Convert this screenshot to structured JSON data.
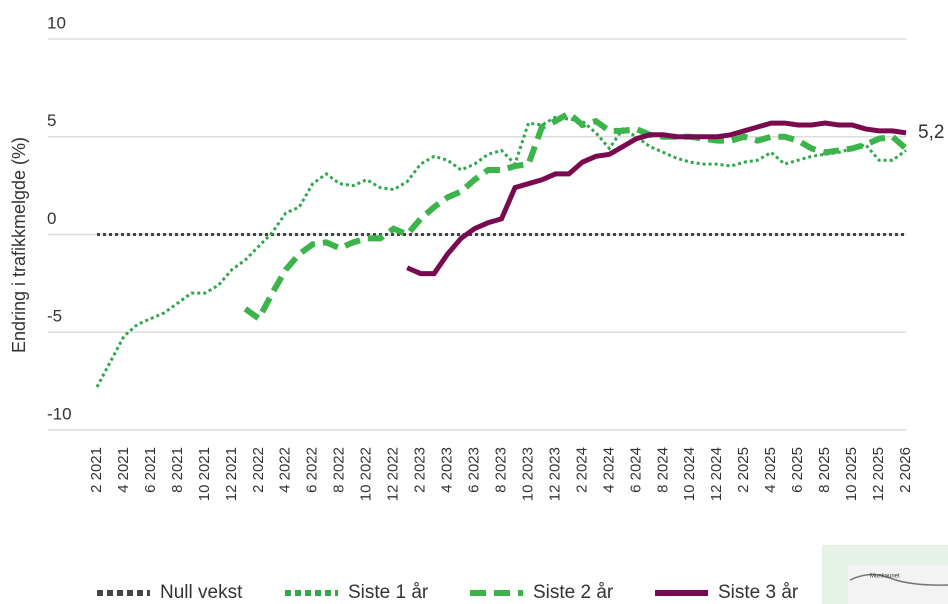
{
  "chart_data": {
    "type": "line",
    "y_label": "Endring i trafikkmelgde (%)",
    "categories": [
      "2 2021",
      null,
      "4 2021",
      null,
      "6 2021",
      null,
      "8 2021",
      null,
      "10 2021",
      null,
      "12 2021",
      null,
      "2 2022",
      null,
      "4 2022",
      null,
      "6 2022",
      null,
      "8 2022",
      null,
      "10 2022",
      null,
      "12 2022",
      null,
      "2 2023",
      null,
      "4 2023",
      null,
      "6 2023",
      null,
      "8 2023",
      null,
      "10 2023",
      null,
      "12 2023",
      null,
      "2 2024",
      null,
      "4 2024",
      null,
      "6 2024",
      null,
      "8 2024",
      null,
      "10 2024",
      null,
      "12 2024",
      null,
      "2 2025",
      null,
      "4 2025",
      null,
      "6 2025",
      null,
      "8 2025",
      null,
      "10 2025",
      null,
      "12 2025",
      null,
      "2 2026"
    ],
    "series": [
      {
        "name": "Null vekst",
        "color": "#444444",
        "style": "dotted",
        "values": [
          0,
          0,
          0,
          0,
          0,
          0,
          0,
          0,
          0,
          0,
          0,
          0,
          0,
          0,
          0,
          0,
          0,
          0,
          0,
          0,
          0,
          0,
          0,
          0,
          0,
          0,
          0,
          0,
          0,
          0,
          0,
          0,
          0,
          0,
          0,
          0,
          0,
          0,
          0,
          0,
          0,
          0,
          0,
          0,
          0,
          0,
          0,
          0,
          0,
          0,
          0,
          0,
          0,
          0,
          0,
          0,
          0,
          0,
          0,
          0,
          0
        ]
      },
      {
        "name": "Siste 1 år",
        "color": "#2ea84a",
        "style": "dotted",
        "values": [
          -7.8,
          -6.5,
          -5.2,
          -4.6,
          -4.3,
          -4.0,
          -3.5,
          -3.0,
          -3.0,
          -2.6,
          -1.8,
          -1.3,
          -0.6,
          0.1,
          1.1,
          1.4,
          2.6,
          3.1,
          2.6,
          2.5,
          2.8,
          2.4,
          2.3,
          2.7,
          3.6,
          4.0,
          3.8,
          3.3,
          3.6,
          4.1,
          4.3,
          3.6,
          5.7,
          5.6,
          6.0,
          5.9,
          5.8,
          5.2,
          4.4,
          5.4,
          5.0,
          4.5,
          4.2,
          3.9,
          3.7,
          3.6,
          3.6,
          3.5,
          3.7,
          3.8,
          4.2,
          3.6,
          3.8,
          4.0,
          4.1,
          4.2,
          4.4,
          4.6,
          3.8,
          3.8,
          4.3
        ]
      },
      {
        "name": "Siste 2 år",
        "color": "#3cb44b",
        "style": "dashed",
        "values": [
          null,
          null,
          null,
          null,
          null,
          null,
          null,
          null,
          null,
          null,
          null,
          -3.8,
          -4.3,
          -3.0,
          -1.8,
          -1.0,
          -0.5,
          -0.4,
          -0.7,
          -0.4,
          -0.2,
          -0.2,
          0.3,
          0.0,
          0.8,
          1.4,
          1.9,
          2.2,
          2.8,
          3.3,
          3.3,
          3.5,
          3.6,
          5.5,
          5.8,
          6.2,
          5.6,
          5.8,
          5.3,
          5.3,
          5.4,
          5.1,
          5.0,
          5.0,
          5.0,
          4.9,
          4.8,
          4.8,
          5.0,
          4.8,
          5.0,
          5.0,
          4.8,
          4.4,
          4.2,
          4.3,
          4.4,
          4.6,
          4.9,
          5.0,
          4.4
        ]
      },
      {
        "name": "Siste 3 år",
        "color": "#7a0a4f",
        "style": "solid",
        "values": [
          null,
          null,
          null,
          null,
          null,
          null,
          null,
          null,
          null,
          null,
          null,
          null,
          null,
          null,
          null,
          null,
          null,
          null,
          null,
          null,
          null,
          null,
          null,
          -1.7,
          -2.0,
          -2.0,
          -1.0,
          -0.2,
          0.3,
          0.6,
          0.8,
          2.4,
          2.6,
          2.8,
          3.1,
          3.1,
          3.7,
          4.0,
          4.1,
          4.5,
          4.9,
          5.1,
          5.1,
          5.0,
          5.0,
          5.0,
          5.0,
          5.1,
          5.3,
          5.5,
          5.7,
          5.7,
          5.6,
          5.6,
          5.7,
          5.6,
          5.6,
          5.4,
          5.3,
          5.3,
          5.2
        ],
        "value_labels": [
          null,
          null,
          null,
          null,
          null,
          null,
          null,
          null,
          null,
          null,
          null,
          null,
          null,
          null,
          null,
          null,
          null,
          null,
          null,
          null,
          null,
          null,
          null,
          null,
          null,
          null,
          null,
          null,
          null,
          null,
          null,
          null,
          null,
          null,
          null,
          null,
          null,
          null,
          null,
          null,
          null,
          null,
          null,
          null,
          null,
          null,
          null,
          null,
          null,
          null,
          null,
          null,
          null,
          null,
          null,
          null,
          null,
          null,
          null,
          null,
          "5,2"
        ]
      }
    ],
    "ylim": [
      -10,
      10
    ],
    "yticks": [
      10,
      5,
      0,
      -5,
      -10
    ],
    "grid": true,
    "thumbnail_label": "Munkaunet"
  }
}
